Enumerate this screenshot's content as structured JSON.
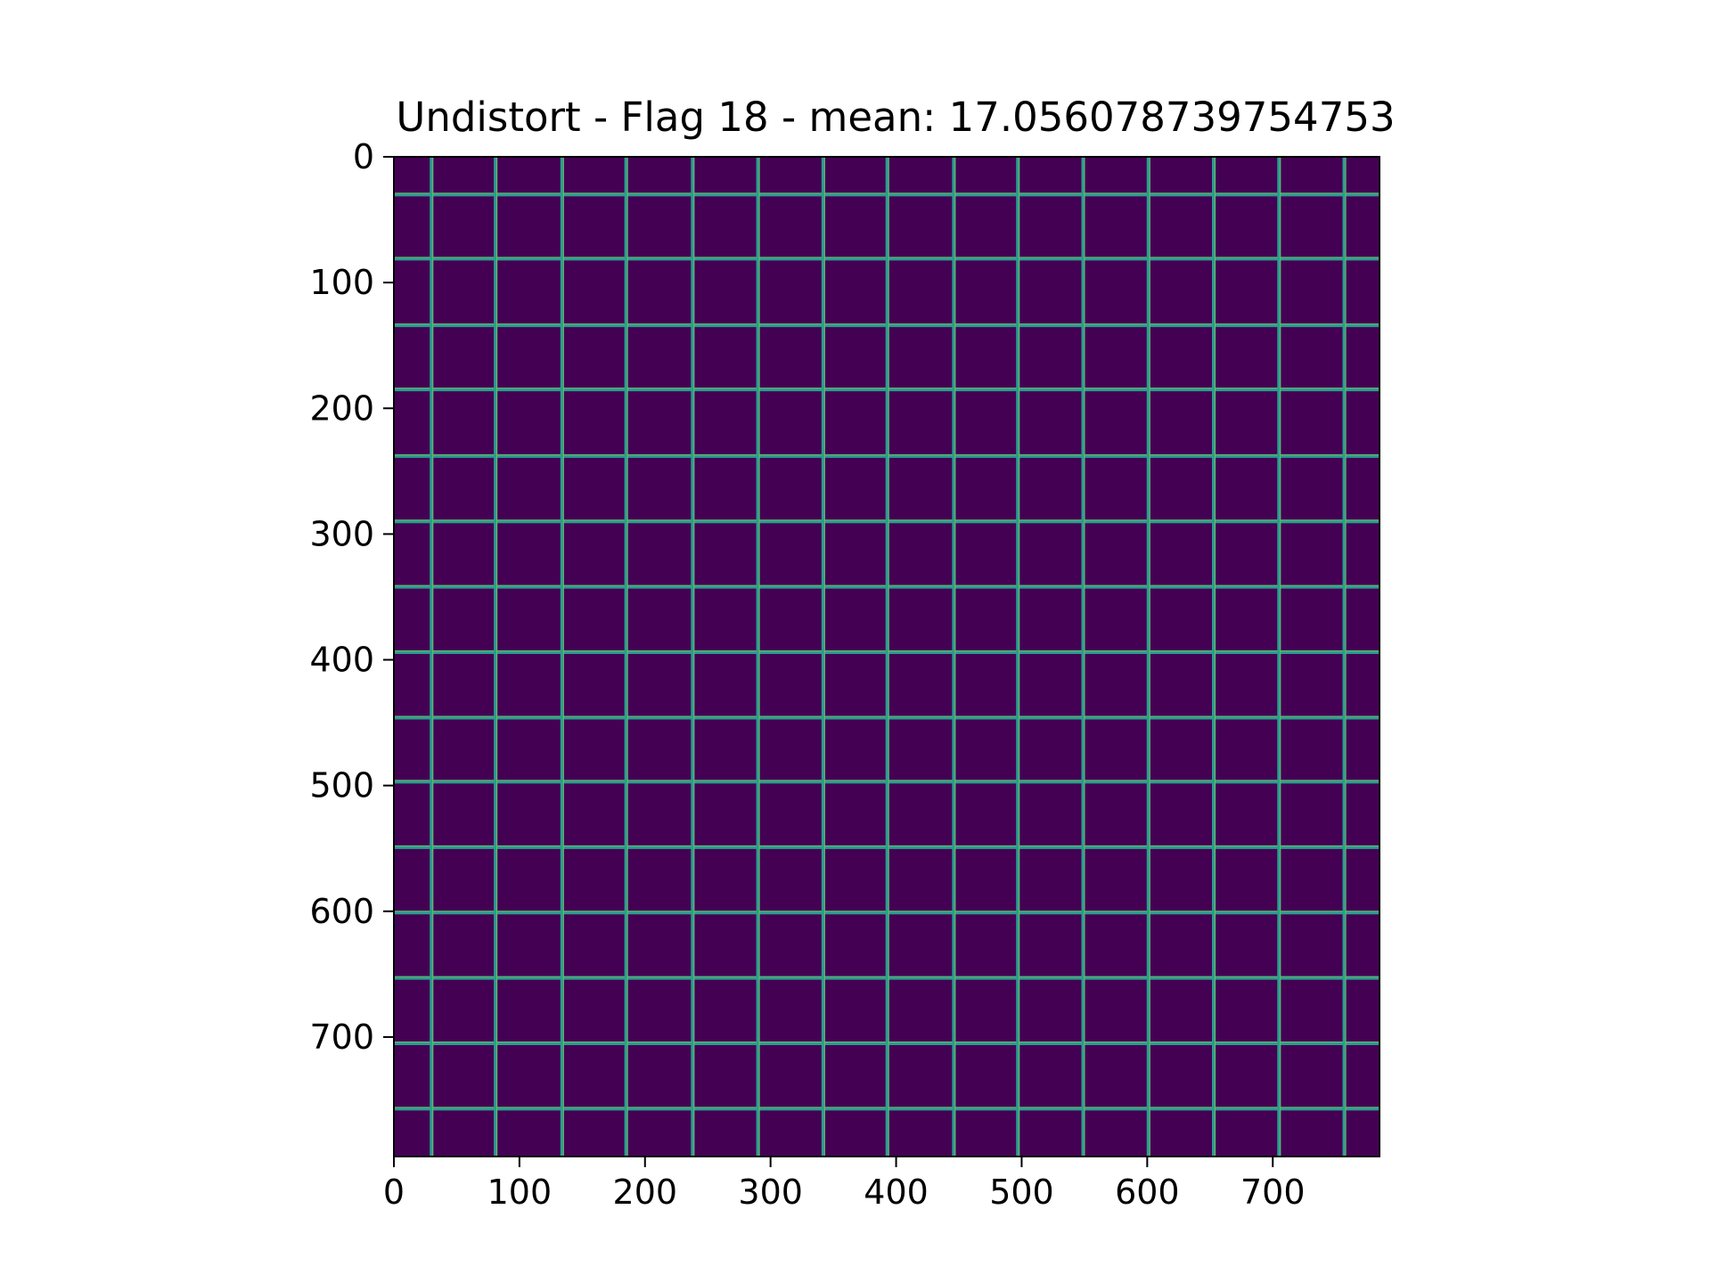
{
  "chart_data": {
    "type": "heatmap",
    "title": "Undistort - Flag 18 - mean: 17.056078739754753",
    "xlabel": "",
    "ylabel": "",
    "xlim": [
      0,
      785
    ],
    "ylim": [
      795,
      0
    ],
    "x_ticks": [
      0,
      100,
      200,
      300,
      400,
      500,
      600,
      700
    ],
    "x_tick_labels": [
      "0",
      "100",
      "200",
      "300",
      "400",
      "500",
      "600",
      "700"
    ],
    "y_ticks": [
      0,
      100,
      200,
      300,
      400,
      500,
      600,
      700
    ],
    "y_tick_labels": [
      "0",
      "100",
      "200",
      "300",
      "400",
      "500",
      "600",
      "700"
    ],
    "colormap": "viridis",
    "background_color": "#440154",
    "line_color": "#2a9d8e",
    "highlight_color": "#a8dc48",
    "vertical_lines_x": [
      30,
      81,
      134,
      185,
      238,
      290,
      342,
      393,
      446,
      497,
      549,
      601,
      653,
      705,
      757
    ],
    "horizontal_lines_y": [
      30,
      81,
      134,
      185,
      238,
      290,
      342,
      394,
      446,
      497,
      549,
      601,
      653,
      705,
      757
    ],
    "grid": false,
    "legend": "none"
  }
}
